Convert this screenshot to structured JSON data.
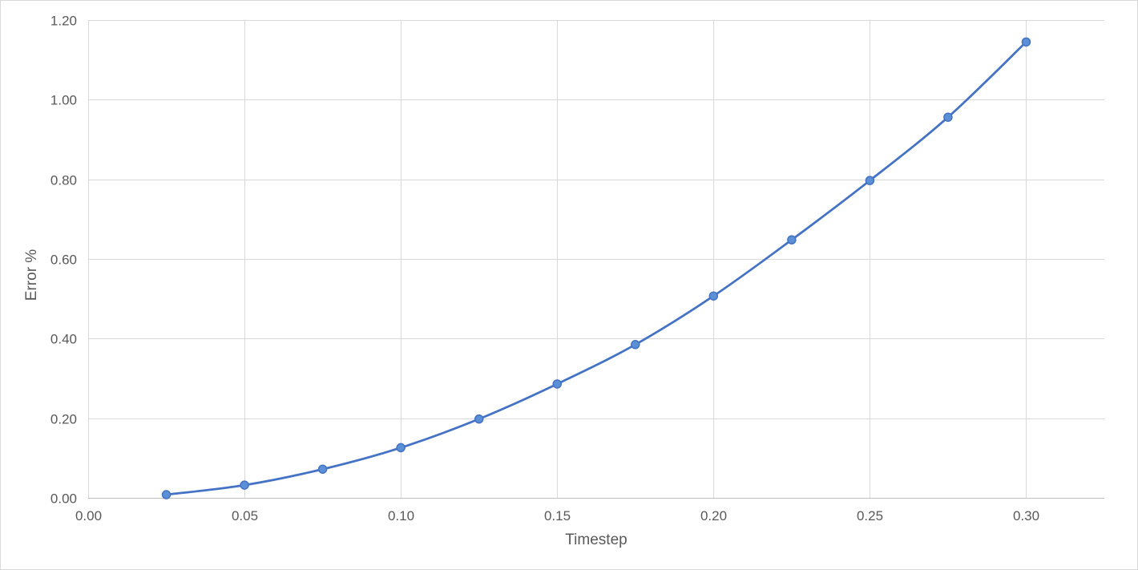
{
  "chart_data": {
    "type": "line",
    "title": "",
    "xlabel": "Timestep",
    "ylabel": "Error %",
    "xlim": [
      0.0,
      0.325
    ],
    "ylim": [
      0.0,
      1.2
    ],
    "x_ticks": [
      0.0,
      0.05,
      0.1,
      0.15,
      0.2,
      0.25,
      0.3
    ],
    "x_tick_labels": [
      "0.00",
      "0.05",
      "0.10",
      "0.15",
      "0.20",
      "0.25",
      "0.30"
    ],
    "y_ticks": [
      0.0,
      0.2,
      0.4,
      0.6,
      0.8,
      1.0,
      1.2
    ],
    "y_tick_labels": [
      "0.00",
      "0.20",
      "0.40",
      "0.60",
      "0.80",
      "1.00",
      "1.20"
    ],
    "grid": true,
    "smooth": true,
    "legend": "none",
    "series": [
      {
        "color": "#4472c4",
        "marker_fill": "#5b8fd6",
        "x": [
          0.025,
          0.05,
          0.075,
          0.1,
          0.125,
          0.15,
          0.175,
          0.2,
          0.225,
          0.25,
          0.275,
          0.3
        ],
        "y": [
          0.008,
          0.032,
          0.072,
          0.126,
          0.198,
          0.286,
          0.385,
          0.507,
          0.648,
          0.797,
          0.956,
          1.145
        ]
      }
    ]
  }
}
